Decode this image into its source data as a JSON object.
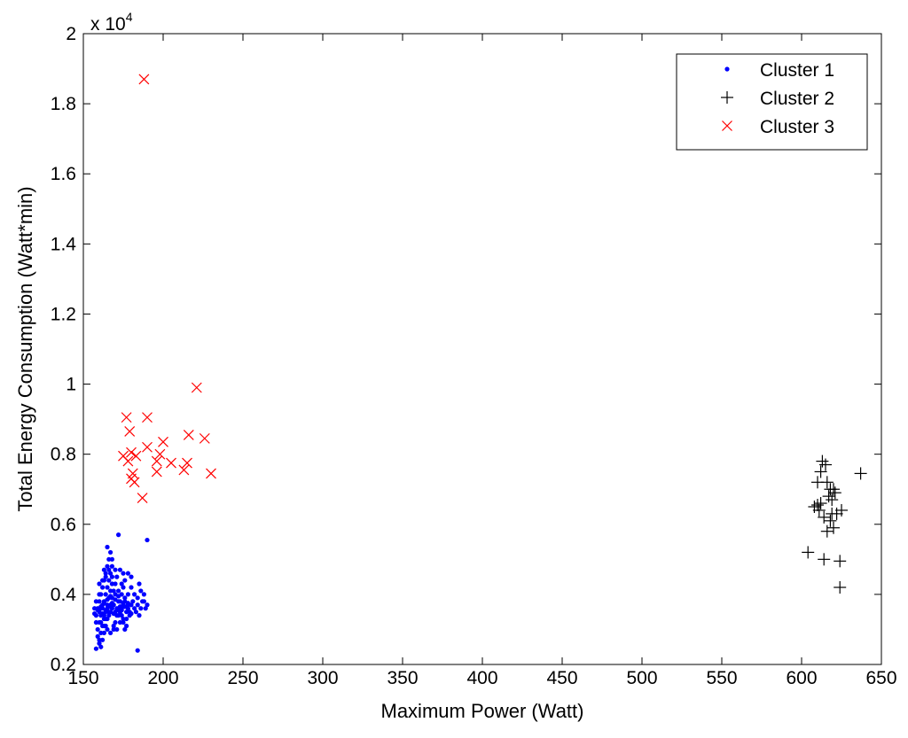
{
  "chart_data": {
    "type": "scatter",
    "xlabel": "Maximum Power (Watt)",
    "ylabel": "Total Energy Consumption (Watt*min)",
    "xlim": [
      150,
      650
    ],
    "ylim": [
      0.2,
      2.0
    ],
    "x_ticks": [
      "150",
      "200",
      "250",
      "300",
      "350",
      "400",
      "450",
      "500",
      "550",
      "600",
      "650"
    ],
    "y_ticks": [
      "0.2",
      "0.4",
      "0.6",
      "0.8",
      "1",
      "1.2",
      "1.4",
      "1.6",
      "1.8",
      "2"
    ],
    "y_multiplier_base": "x 10",
    "y_multiplier_exponent": "4",
    "legend_position": "top-right",
    "series": [
      {
        "name": "Cluster 1",
        "marker": "dot",
        "color": "#0000ff",
        "points": [
          [
            158,
            0.245
          ],
          [
            160,
            0.26
          ],
          [
            161,
            0.29
          ],
          [
            162,
            0.31
          ],
          [
            163,
            0.33
          ],
          [
            164,
            0.35
          ],
          [
            165,
            0.37
          ],
          [
            166,
            0.39
          ],
          [
            167,
            0.41
          ],
          [
            168,
            0.43
          ],
          [
            159,
            0.3
          ],
          [
            160,
            0.32
          ],
          [
            161,
            0.34
          ],
          [
            162,
            0.36
          ],
          [
            163,
            0.38
          ],
          [
            164,
            0.4
          ],
          [
            165,
            0.42
          ],
          [
            166,
            0.44
          ],
          [
            167,
            0.46
          ],
          [
            168,
            0.48
          ],
          [
            158,
            0.34
          ],
          [
            159,
            0.36
          ],
          [
            160,
            0.38
          ],
          [
            161,
            0.4
          ],
          [
            162,
            0.42
          ],
          [
            163,
            0.44
          ],
          [
            164,
            0.46
          ],
          [
            165,
            0.48
          ],
          [
            166,
            0.5
          ],
          [
            167,
            0.52
          ],
          [
            169,
            0.3
          ],
          [
            170,
            0.32
          ],
          [
            171,
            0.34
          ],
          [
            172,
            0.36
          ],
          [
            173,
            0.38
          ],
          [
            174,
            0.4
          ],
          [
            175,
            0.42
          ],
          [
            176,
            0.44
          ],
          [
            177,
            0.35
          ],
          [
            178,
            0.37
          ],
          [
            158,
            0.32
          ],
          [
            159,
            0.28
          ],
          [
            160,
            0.27
          ],
          [
            161,
            0.25
          ],
          [
            162,
            0.27
          ],
          [
            163,
            0.29
          ],
          [
            164,
            0.31
          ],
          [
            165,
            0.33
          ],
          [
            166,
            0.35
          ],
          [
            167,
            0.37
          ],
          [
            168,
            0.39
          ],
          [
            169,
            0.41
          ],
          [
            170,
            0.43
          ],
          [
            171,
            0.45
          ],
          [
            172,
            0.38
          ],
          [
            173,
            0.36
          ],
          [
            174,
            0.34
          ],
          [
            175,
            0.32
          ],
          [
            176,
            0.3
          ],
          [
            177,
            0.31
          ],
          [
            160,
            0.35
          ],
          [
            161,
            0.36
          ],
          [
            162,
            0.37
          ],
          [
            163,
            0.34
          ],
          [
            164,
            0.33
          ],
          [
            165,
            0.36
          ],
          [
            166,
            0.34
          ],
          [
            167,
            0.35
          ],
          [
            168,
            0.36
          ],
          [
            169,
            0.37
          ],
          [
            170,
            0.35
          ],
          [
            171,
            0.36
          ],
          [
            172,
            0.34
          ],
          [
            173,
            0.35
          ],
          [
            174,
            0.36
          ],
          [
            175,
            0.37
          ],
          [
            176,
            0.38
          ],
          [
            178,
            0.36
          ],
          [
            179,
            0.35
          ],
          [
            180,
            0.37
          ],
          [
            181,
            0.38
          ],
          [
            182,
            0.36
          ],
          [
            183,
            0.35
          ],
          [
            184,
            0.37
          ],
          [
            185,
            0.34
          ],
          [
            186,
            0.36
          ],
          [
            187,
            0.38
          ],
          [
            188,
            0.4
          ],
          [
            189,
            0.36
          ],
          [
            190,
            0.37
          ],
          [
            160,
            0.4
          ],
          [
            162,
            0.44
          ],
          [
            164,
            0.45
          ],
          [
            166,
            0.47
          ],
          [
            168,
            0.45
          ],
          [
            170,
            0.4
          ],
          [
            172,
            0.41
          ],
          [
            174,
            0.43
          ],
          [
            176,
            0.39
          ],
          [
            178,
            0.4
          ],
          [
            180,
            0.42
          ],
          [
            182,
            0.4
          ],
          [
            184,
            0.39
          ],
          [
            186,
            0.41
          ],
          [
            188,
            0.38
          ],
          [
            185,
            0.43
          ],
          [
            180,
            0.45
          ],
          [
            178,
            0.46
          ],
          [
            175,
            0.46
          ],
          [
            173,
            0.47
          ],
          [
            172,
            0.57
          ],
          [
            165,
            0.535
          ],
          [
            190,
            0.555
          ],
          [
            184,
            0.24
          ],
          [
            170,
            0.47
          ],
          [
            168,
            0.5
          ],
          [
            163,
            0.47
          ],
          [
            160,
            0.43
          ],
          [
            158,
            0.38
          ],
          [
            157,
            0.36
          ],
          [
            161,
            0.32
          ],
          [
            163,
            0.31
          ],
          [
            165,
            0.3
          ],
          [
            167,
            0.29
          ],
          [
            169,
            0.31
          ],
          [
            171,
            0.3
          ],
          [
            173,
            0.32
          ],
          [
            175,
            0.33
          ],
          [
            177,
            0.33
          ],
          [
            179,
            0.34
          ],
          [
            162,
            0.345
          ],
          [
            164,
            0.355
          ],
          [
            166,
            0.365
          ],
          [
            168,
            0.375
          ],
          [
            170,
            0.385
          ],
          [
            172,
            0.395
          ],
          [
            174,
            0.355
          ],
          [
            176,
            0.365
          ],
          [
            178,
            0.375
          ],
          [
            180,
            0.345
          ],
          [
            165,
            0.385
          ],
          [
            167,
            0.395
          ],
          [
            169,
            0.345
          ],
          [
            171,
            0.355
          ],
          [
            173,
            0.365
          ],
          [
            175,
            0.375
          ],
          [
            163,
            0.375
          ],
          [
            161,
            0.365
          ],
          [
            159,
            0.355
          ],
          [
            157,
            0.345
          ]
        ]
      },
      {
        "name": "Cluster 2",
        "marker": "plus",
        "color": "#000000",
        "points": [
          [
            613,
            0.78
          ],
          [
            615,
            0.77
          ],
          [
            612,
            0.75
          ],
          [
            618,
            0.7
          ],
          [
            620,
            0.7
          ],
          [
            617,
            0.68
          ],
          [
            616,
            0.72
          ],
          [
            610,
            0.72
          ],
          [
            619,
            0.67
          ],
          [
            621,
            0.69
          ],
          [
            608,
            0.65
          ],
          [
            611,
            0.64
          ],
          [
            614,
            0.62
          ],
          [
            618,
            0.61
          ],
          [
            620,
            0.59
          ],
          [
            625,
            0.64
          ],
          [
            612,
            0.66
          ],
          [
            622,
            0.63
          ],
          [
            637,
            0.745
          ],
          [
            610,
            0.655
          ],
          [
            604,
            0.52
          ],
          [
            614,
            0.5
          ],
          [
            624,
            0.495
          ],
          [
            624,
            0.42
          ],
          [
            616,
            0.58
          ],
          [
            619,
            0.63
          ]
        ]
      },
      {
        "name": "Cluster 3",
        "marker": "x",
        "color": "#ff0000",
        "points": [
          [
            188,
            1.87
          ],
          [
            221,
            0.99
          ],
          [
            177,
            0.905
          ],
          [
            190,
            0.905
          ],
          [
            179,
            0.865
          ],
          [
            216,
            0.855
          ],
          [
            226,
            0.845
          ],
          [
            200,
            0.835
          ],
          [
            190,
            0.82
          ],
          [
            198,
            0.8
          ],
          [
            180,
            0.805
          ],
          [
            175,
            0.795
          ],
          [
            183,
            0.795
          ],
          [
            178,
            0.78
          ],
          [
            196,
            0.78
          ],
          [
            205,
            0.775
          ],
          [
            215,
            0.775
          ],
          [
            213,
            0.755
          ],
          [
            196,
            0.75
          ],
          [
            181,
            0.745
          ],
          [
            230,
            0.745
          ],
          [
            180,
            0.73
          ],
          [
            182,
            0.72
          ],
          [
            187,
            0.675
          ]
        ]
      }
    ]
  }
}
